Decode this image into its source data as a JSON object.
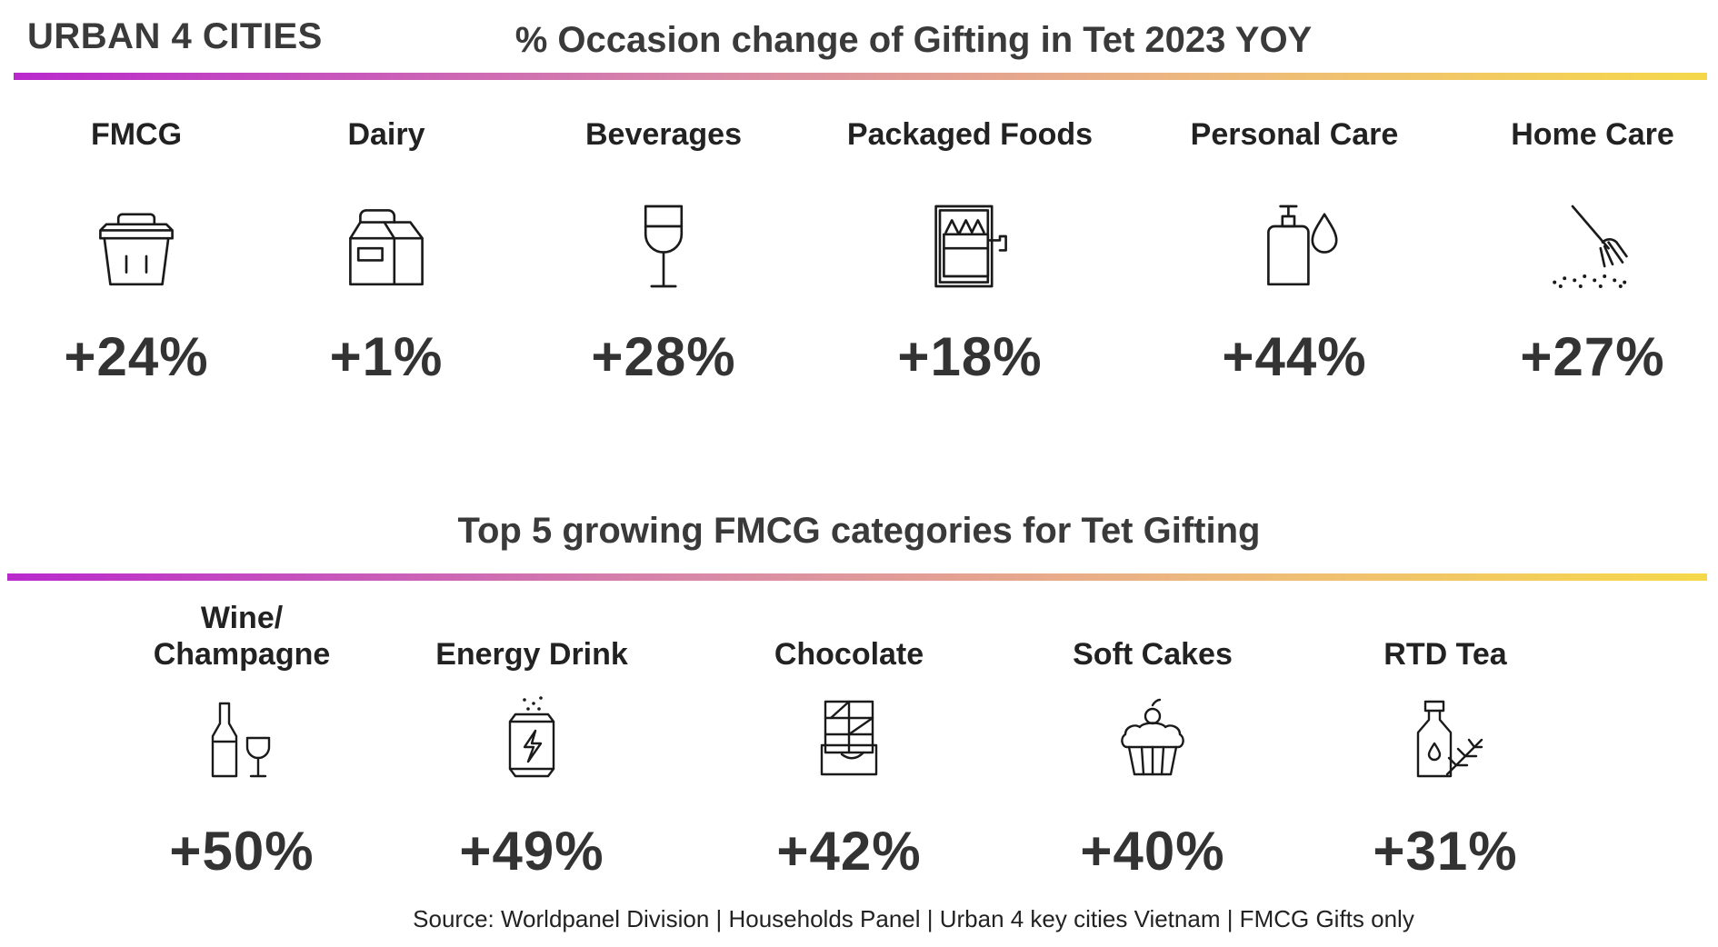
{
  "header": {
    "region": "URBAN 4 CITIES",
    "title": "% Occasion change of Gifting in Tet 2023 YOY"
  },
  "section2": {
    "title": "Top 5 growing FMCG categories for Tet Gifting"
  },
  "footer": {
    "source": "Source: Worldpanel Division | Households Panel | Urban 4 key cities Vietnam | FMCG Gifts only"
  },
  "colors": {
    "gradient_start": "#b929cc",
    "gradient_mid": "#d888a8",
    "gradient_end": "#f5d84a",
    "text": "#333333"
  },
  "chart_data": [
    {
      "type": "table",
      "title": "% Occasion change of Gifting in Tet 2023 YOY",
      "categories": [
        "FMCG",
        "Dairy",
        "Beverages",
        "Packaged Foods",
        "Personal Care",
        "Home Care"
      ],
      "values": [
        24,
        1,
        28,
        18,
        44,
        27
      ],
      "labels": [
        "+24%",
        "+1%",
        "+28%",
        "+18%",
        "+44%",
        "+27%"
      ],
      "icons": [
        "basket-icon",
        "milk-carton-icon",
        "wine-glass-icon",
        "tin-can-icon",
        "soap-dispenser-icon",
        "broom-icon"
      ]
    },
    {
      "type": "table",
      "title": "Top 5 growing FMCG categories for Tet Gifting",
      "categories": [
        "Wine/ Champagne",
        "Energy Drink",
        "Chocolate",
        "Soft Cakes",
        "RTD Tea"
      ],
      "values": [
        50,
        49,
        42,
        40,
        31
      ],
      "labels": [
        "+50%",
        "+49%",
        "+42%",
        "+40%",
        "+31%"
      ],
      "icons": [
        "wine-bottle-glass-icon",
        "energy-can-icon",
        "chocolate-bar-icon",
        "cupcake-icon",
        "tea-bottle-icon"
      ]
    }
  ]
}
